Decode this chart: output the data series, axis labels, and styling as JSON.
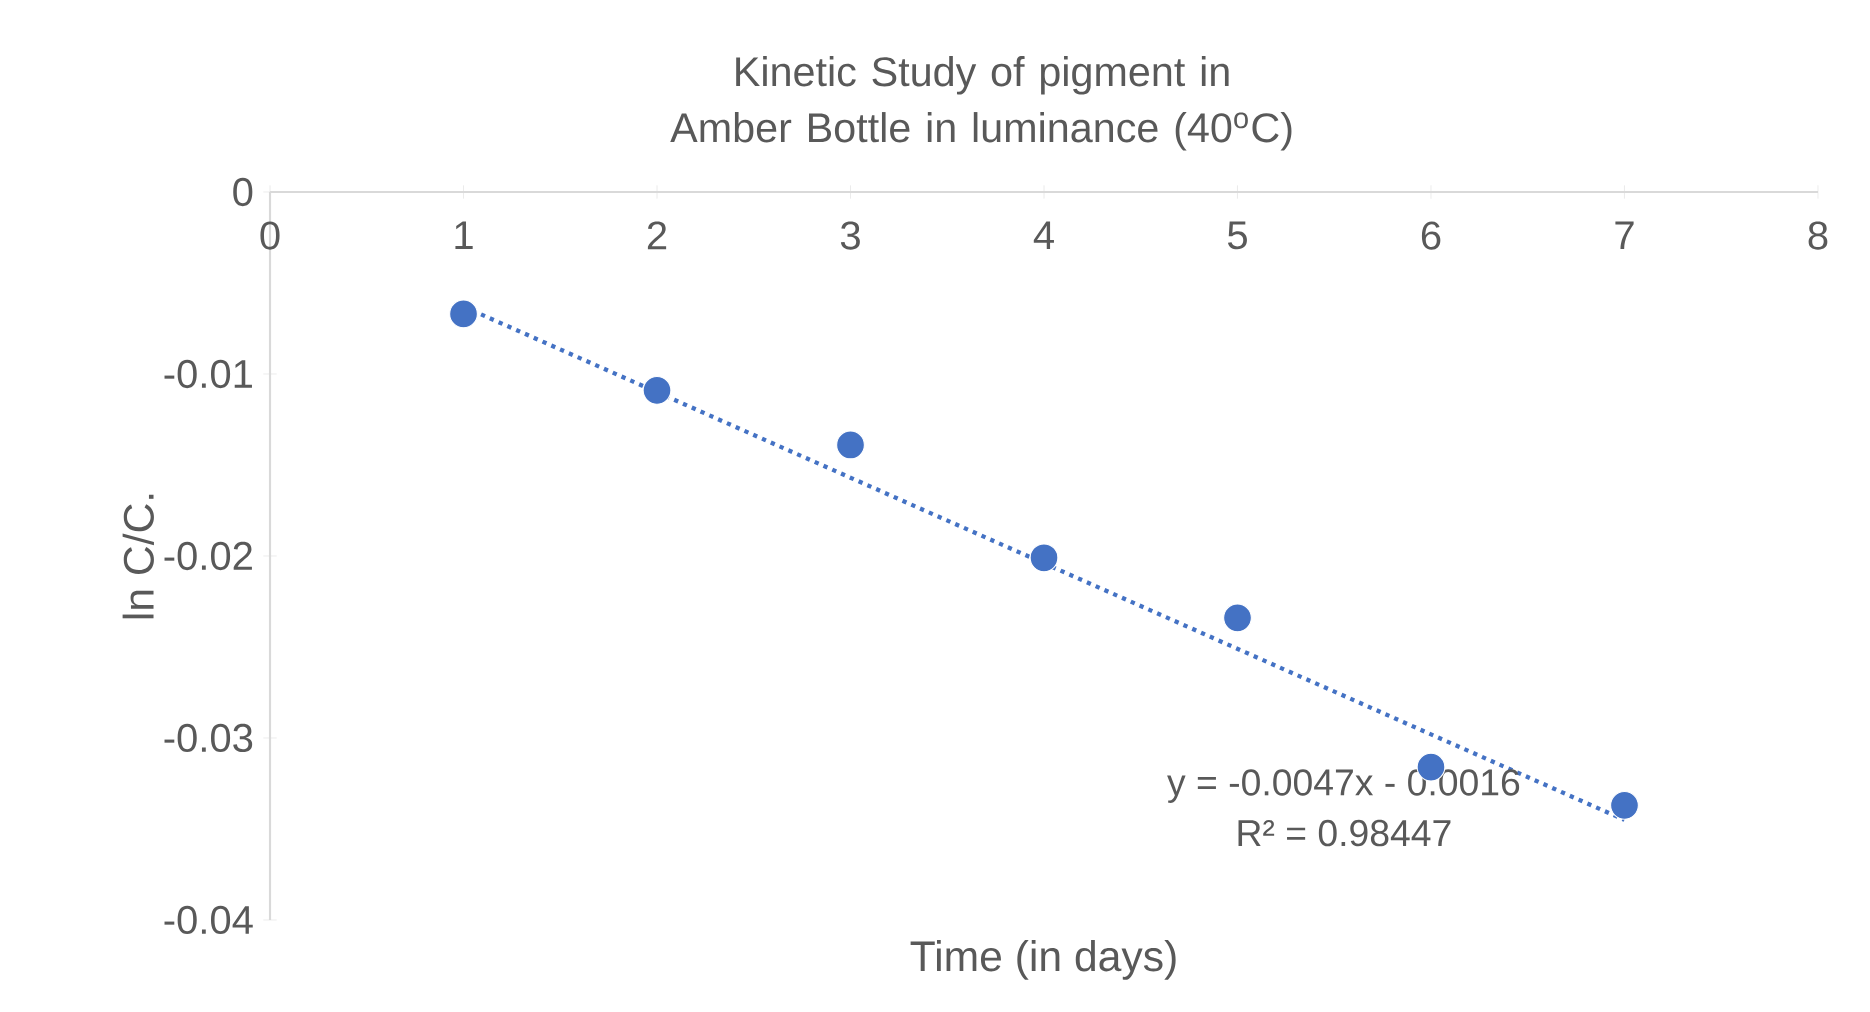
{
  "chart_data": {
    "type": "scatter",
    "title": "Kinetic Study of pigment in Amber Bottle in luminance (40$^{o}$C)",
    "xlabel": "Time (in days)",
    "ylabel": "ln C/C.",
    "xlim": [
      0,
      8
    ],
    "xticks": [
      0,
      1,
      2,
      3,
      4,
      5,
      6,
      7,
      8
    ],
    "ylim": [
      -0.04,
      0
    ],
    "yticks": [
      -0.04,
      -0.03,
      -0.02,
      -0.01,
      0
    ],
    "grid": false,
    "series": [
      {
        "x": [
          1,
          2,
          3,
          4,
          5,
          6,
          7
        ],
        "values": [
          -0.0067,
          -0.0109,
          -0.0139,
          -0.0201,
          -0.0234,
          -0.0316,
          -0.0337
        ],
        "color": "#4472c4",
        "marker": "circle"
      },
      {
        "type": "line",
        "x": [
          1,
          7
        ],
        "values": [
          -0.0063,
          -0.0345
        ],
        "color": "#4472c4",
        "line_style": "dotted",
        "marker": "none"
      }
    ],
    "annotations": [
      "y = -0.0047x - 0.0016",
      "R² = 0.98447"
    ]
  }
}
